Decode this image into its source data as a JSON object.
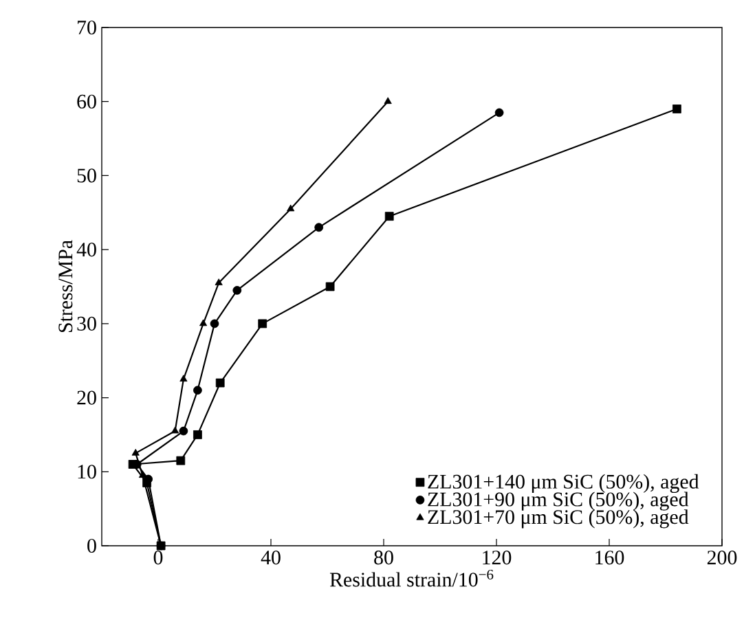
{
  "chart_data": {
    "type": "line",
    "xlabel": "Residual strain/10$^{−6}$",
    "ylabel": "Stress/MPa",
    "xlim": [
      -20,
      200
    ],
    "ylim": [
      0,
      70
    ],
    "xticks": [
      0,
      40,
      80,
      120,
      160,
      200
    ],
    "yticks": [
      0,
      10,
      20,
      30,
      40,
      50,
      60,
      70
    ],
    "legend": "bottom right",
    "line_style": "solid",
    "series": [
      {
        "name": "ZL301+140 μm SiC (50%), aged",
        "color": "#000000",
        "marker": "square",
        "x": [
          1,
          -4,
          -9,
          8,
          14,
          22,
          37,
          61,
          82,
          184
        ],
        "values": [
          0,
          8.5,
          11,
          11.5,
          15,
          22,
          30,
          35,
          44.5,
          59
        ]
      },
      {
        "name": "ZL301+90 μm SiC (50%), aged",
        "color": "#000000",
        "marker": "circle",
        "x": [
          1,
          -3.5,
          -7.5,
          9,
          14,
          20,
          28,
          57,
          121
        ],
        "values": [
          0,
          9,
          11,
          15.5,
          21,
          30,
          34.5,
          43,
          58.5
        ]
      },
      {
        "name": "ZL301+70 μm SiC (50%), aged",
        "color": "#000000",
        "marker": "triangle",
        "x": [
          1,
          -5.5,
          -8,
          6,
          9,
          16,
          21.5,
          47,
          81.5
        ],
        "values": [
          0,
          9.5,
          12.5,
          15.5,
          22.5,
          30,
          35.5,
          45.5,
          60
        ]
      }
    ]
  }
}
